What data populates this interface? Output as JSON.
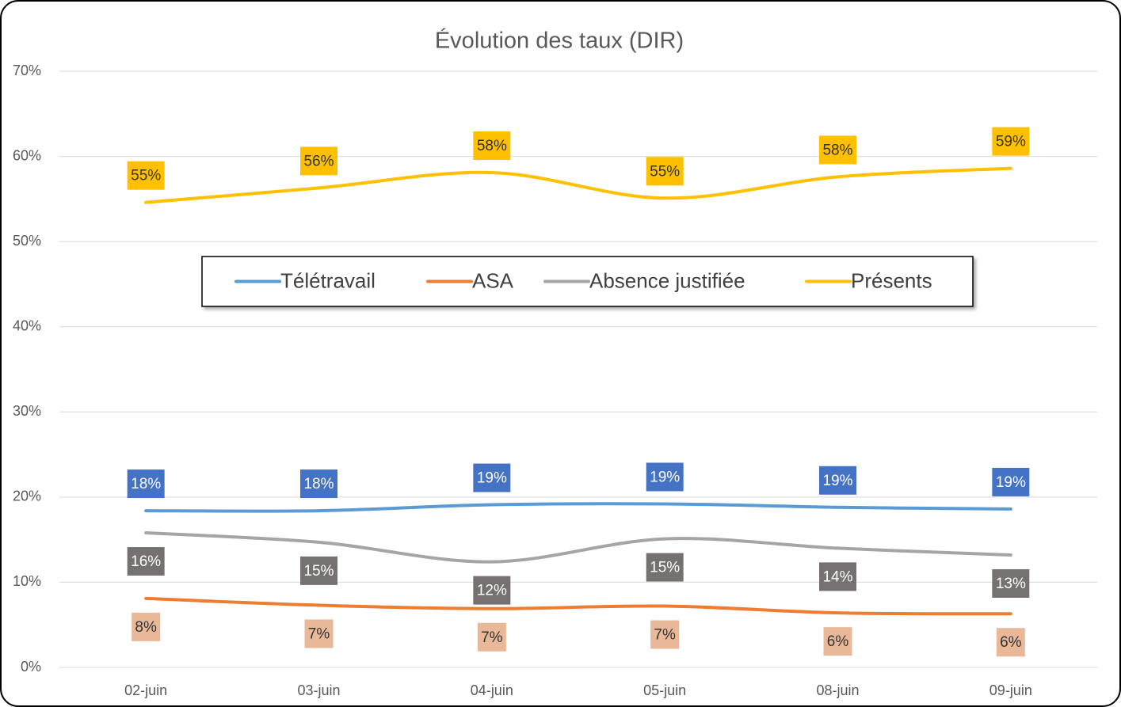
{
  "chart_data": {
    "type": "line",
    "title": "Évolution des taux (DIR)",
    "categories": [
      "02-juin",
      "03-juin",
      "04-juin",
      "05-juin",
      "08-juin",
      "09-juin"
    ],
    "series": [
      {
        "name": "Télétravail",
        "color": "#5b9bd5",
        "label_color": "#4472c4",
        "label_text_color": "#ffffff",
        "label_side": "above",
        "values": [
          18.4,
          18.4,
          19.1,
          19.2,
          18.8,
          18.6
        ],
        "value_labels": [
          "18%",
          "18%",
          "19%",
          "19%",
          "19%",
          "19%"
        ]
      },
      {
        "name": "ASA",
        "color": "#ed7d31",
        "label_color": "#e9b898",
        "label_text_color": "#333333",
        "label_side": "below",
        "values": [
          8.1,
          7.3,
          6.9,
          7.2,
          6.4,
          6.3
        ],
        "value_labels": [
          "8%",
          "7%",
          "7%",
          "7%",
          "6%",
          "6%"
        ]
      },
      {
        "name": "Absence justifiée",
        "color": "#a5a5a5",
        "label_color": "#767171",
        "label_text_color": "#ffffff",
        "label_side": "below",
        "values": [
          15.8,
          14.7,
          12.4,
          15.1,
          14.0,
          13.2
        ],
        "value_labels": [
          "16%",
          "15%",
          "12%",
          "15%",
          "14%",
          "13%"
        ]
      },
      {
        "name": "Présents",
        "color": "#ffc000",
        "label_color": "#ffc000",
        "label_text_color": "#333333",
        "label_side": "above",
        "values": [
          54.6,
          56.3,
          58.1,
          55.1,
          57.6,
          58.6
        ],
        "value_labels": [
          "55%",
          "56%",
          "58%",
          "55%",
          "58%",
          "59%"
        ]
      }
    ],
    "ylim": [
      0,
      70
    ],
    "yticks": [
      {
        "value": 0,
        "label": "0%"
      },
      {
        "value": 10,
        "label": "10%"
      },
      {
        "value": 20,
        "label": "20%"
      },
      {
        "value": 30,
        "label": "30%"
      },
      {
        "value": 40,
        "label": "40%"
      },
      {
        "value": 50,
        "label": "50%"
      },
      {
        "value": 60,
        "label": "60%"
      },
      {
        "value": 70,
        "label": "70%"
      }
    ],
    "grid": true,
    "smooth": true,
    "legend": "center"
  }
}
